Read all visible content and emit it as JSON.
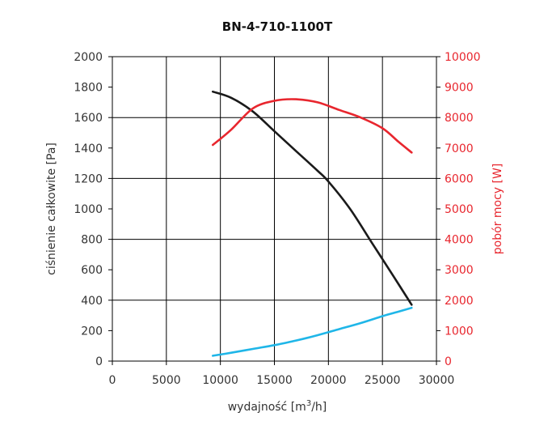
{
  "chart_data": {
    "type": "line",
    "title": "BN-4-710-1100T",
    "xlabel": "wydajność [m",
    "xlabel_sup": "3",
    "xlabel_end": "/h]",
    "ylabel_left": "ciśnienie całkowite [Pa]",
    "ylabel_right": "pobór mocy [W]",
    "xlim": [
      0,
      30000
    ],
    "ylim_left": [
      0,
      2000
    ],
    "ylim_right": [
      0,
      10000
    ],
    "x_ticks": [
      "0",
      "5000",
      "10000",
      "15000",
      "20000",
      "25000",
      "30000"
    ],
    "y_left_ticks": [
      "0",
      "200",
      "400",
      "600",
      "800",
      "1000",
      "1200",
      "1400",
      "1600",
      "1800",
      "2000"
    ],
    "y_right_ticks": [
      "0",
      "1000",
      "2000",
      "3000",
      "4000",
      "5000",
      "6000",
      "7000",
      "8000",
      "9000",
      "10000"
    ],
    "grid": true,
    "series": [
      {
        "axis": "left",
        "color": "#1a1a1a",
        "x": [
          9300,
          11000,
          13000,
          15000,
          17000,
          19000,
          20000,
          22000,
          24000,
          26000,
          27700
        ],
        "y": [
          1770,
          1730,
          1640,
          1510,
          1380,
          1250,
          1180,
          1000,
          780,
          560,
          370
        ]
      },
      {
        "axis": "right",
        "color": "#e8262e",
        "x": [
          9300,
          11000,
          13000,
          15000,
          17000,
          19000,
          21000,
          23000,
          25000,
          26500,
          27700
        ],
        "y": [
          7100,
          7600,
          8300,
          8550,
          8600,
          8500,
          8250,
          8000,
          7650,
          7200,
          6850
        ]
      },
      {
        "axis": "left",
        "color": "#1fb6e8",
        "x": [
          9300,
          11000,
          13000,
          15000,
          17000,
          19000,
          21000,
          23000,
          25000,
          26500,
          27700
        ],
        "y": [
          35,
          55,
          80,
          105,
          135,
          170,
          210,
          250,
          295,
          325,
          350
        ]
      }
    ]
  }
}
